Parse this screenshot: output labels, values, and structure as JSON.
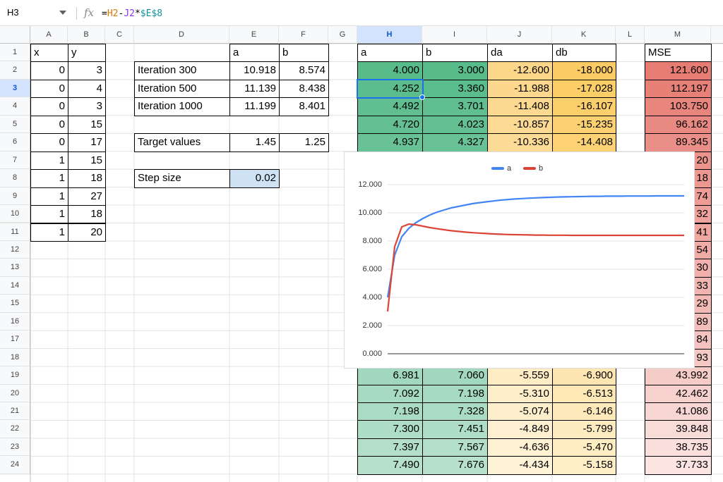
{
  "toolbar": {
    "cell_ref": "H3",
    "fx": "fx",
    "formula_tokens": [
      "=",
      "H2",
      "-",
      "J2",
      "*",
      "$E$8"
    ]
  },
  "columns": [
    "A",
    "B",
    "C",
    "D",
    "E",
    "F",
    "G",
    "H",
    "I",
    "J",
    "K",
    "L",
    "M"
  ],
  "row_numbers": [
    1,
    2,
    3,
    4,
    5,
    6,
    7,
    8,
    9,
    10,
    11,
    12,
    13,
    14,
    15,
    16,
    17,
    18,
    19,
    20,
    21,
    22,
    23,
    24
  ],
  "table": {
    "rows": [
      [
        "x",
        "y",
        null,
        null,
        "a",
        "b",
        null,
        "a",
        "b",
        "da",
        "db",
        null,
        "MSE"
      ],
      [
        "0",
        "3",
        null,
        "Iteration 300",
        "10.918",
        "8.574",
        null,
        "4.000",
        "3.000",
        "-12.600",
        "-18.000",
        null,
        "121.600"
      ],
      [
        "0",
        "4",
        null,
        "Iteration 500",
        "11.139",
        "8.438",
        null,
        "4.252",
        "3.360",
        "-11.988",
        "-17.028",
        null,
        "112.197"
      ],
      [
        "0",
        "3",
        null,
        "Iteration 1000",
        "11.199",
        "8.401",
        null,
        "4.492",
        "3.701",
        "-11.408",
        "-16.107",
        null,
        "103.750"
      ],
      [
        "0",
        "15",
        null,
        null,
        null,
        null,
        null,
        "4.720",
        "4.023",
        "-10.857",
        "-15.235",
        null,
        "96.162"
      ],
      [
        "0",
        "17",
        null,
        "Target values",
        "1.45",
        "1.25",
        null,
        "4.937",
        "4.327",
        "-10.336",
        "-14.408",
        null,
        "89.345"
      ],
      [
        "1",
        "15",
        null,
        null,
        null,
        null,
        null,
        null,
        null,
        null,
        null,
        null,
        "20"
      ],
      [
        "1",
        "18",
        null,
        "Step size",
        "0.02",
        null,
        null,
        null,
        null,
        null,
        null,
        null,
        "18"
      ],
      [
        "1",
        "27",
        null,
        null,
        null,
        null,
        null,
        null,
        null,
        null,
        null,
        null,
        "74"
      ],
      [
        "1",
        "18",
        null,
        null,
        null,
        null,
        null,
        null,
        null,
        null,
        null,
        null,
        "32"
      ],
      [
        "1",
        "20",
        null,
        null,
        null,
        null,
        null,
        null,
        null,
        null,
        null,
        null,
        "41"
      ],
      [
        null,
        null,
        null,
        null,
        null,
        null,
        null,
        null,
        null,
        null,
        null,
        null,
        "54"
      ],
      [
        null,
        null,
        null,
        null,
        null,
        null,
        null,
        null,
        null,
        null,
        null,
        null,
        "30"
      ],
      [
        null,
        null,
        null,
        null,
        null,
        null,
        null,
        null,
        null,
        null,
        null,
        null,
        "33"
      ],
      [
        null,
        null,
        null,
        null,
        null,
        null,
        null,
        null,
        null,
        null,
        null,
        null,
        "29"
      ],
      [
        null,
        null,
        null,
        null,
        null,
        null,
        null,
        null,
        null,
        null,
        null,
        null,
        "89"
      ],
      [
        null,
        null,
        null,
        null,
        null,
        null,
        null,
        null,
        null,
        null,
        null,
        null,
        "84"
      ],
      [
        null,
        null,
        null,
        null,
        null,
        null,
        null,
        null,
        null,
        null,
        null,
        null,
        "93"
      ],
      [
        null,
        null,
        null,
        null,
        null,
        null,
        null,
        "6.981",
        "7.060",
        "-5.559",
        "-6.900",
        null,
        "43.992"
      ],
      [
        null,
        null,
        null,
        null,
        null,
        null,
        null,
        "7.092",
        "7.198",
        "-5.310",
        "-6.513",
        null,
        "42.462"
      ],
      [
        null,
        null,
        null,
        null,
        null,
        null,
        null,
        "7.198",
        "7.328",
        "-5.074",
        "-6.146",
        null,
        "41.086"
      ],
      [
        null,
        null,
        null,
        null,
        null,
        null,
        null,
        "7.300",
        "7.451",
        "-4.849",
        "-5.799",
        null,
        "39.848"
      ],
      [
        null,
        null,
        null,
        null,
        null,
        null,
        null,
        "7.397",
        "7.567",
        "-4.636",
        "-5.470",
        null,
        "38.735"
      ],
      [
        null,
        null,
        null,
        null,
        null,
        null,
        null,
        "7.490",
        "7.676",
        "-4.434",
        "-5.158",
        null,
        "37.733"
      ]
    ]
  },
  "chart_data": {
    "type": "line",
    "series": [
      {
        "name": "a",
        "color": "#4285f4",
        "values": [
          4.0,
          7.0,
          8.3,
          8.9,
          9.3,
          9.6,
          9.85,
          10.05,
          10.2,
          10.35,
          10.45,
          10.55,
          10.65,
          10.72,
          10.78,
          10.84,
          10.9,
          10.94,
          10.98,
          11.01,
          11.04,
          11.06,
          11.08,
          11.1,
          11.12,
          11.13,
          11.14,
          11.15,
          11.16,
          11.17,
          11.17,
          11.18,
          11.18,
          11.18,
          11.19,
          11.19,
          11.19,
          11.19,
          11.2,
          11.2,
          11.2,
          11.2,
          11.2
        ]
      },
      {
        "name": "b",
        "color": "#db4437",
        "values": [
          3.0,
          7.6,
          9.0,
          9.2,
          9.15,
          9.05,
          8.95,
          8.87,
          8.8,
          8.73,
          8.68,
          8.63,
          8.59,
          8.56,
          8.53,
          8.5,
          8.48,
          8.46,
          8.45,
          8.44,
          8.43,
          8.42,
          8.42,
          8.41,
          8.41,
          8.41,
          8.4,
          8.4,
          8.4,
          8.4,
          8.4,
          8.4,
          8.4,
          8.4,
          8.4,
          8.4,
          8.4,
          8.4,
          8.4,
          8.4,
          8.4,
          8.4,
          8.4
        ]
      }
    ],
    "ylim": [
      0,
      12
    ],
    "yticks": [
      {
        "value": 0,
        "label": "0.000"
      },
      {
        "value": 2,
        "label": "2.000"
      },
      {
        "value": 4,
        "label": "4.000"
      },
      {
        "value": 6,
        "label": "6.000"
      },
      {
        "value": 8,
        "label": "8.000"
      },
      {
        "value": 10,
        "label": "10.000"
      },
      {
        "value": 12,
        "label": "12.000"
      }
    ],
    "grid": true,
    "legend": "top"
  }
}
